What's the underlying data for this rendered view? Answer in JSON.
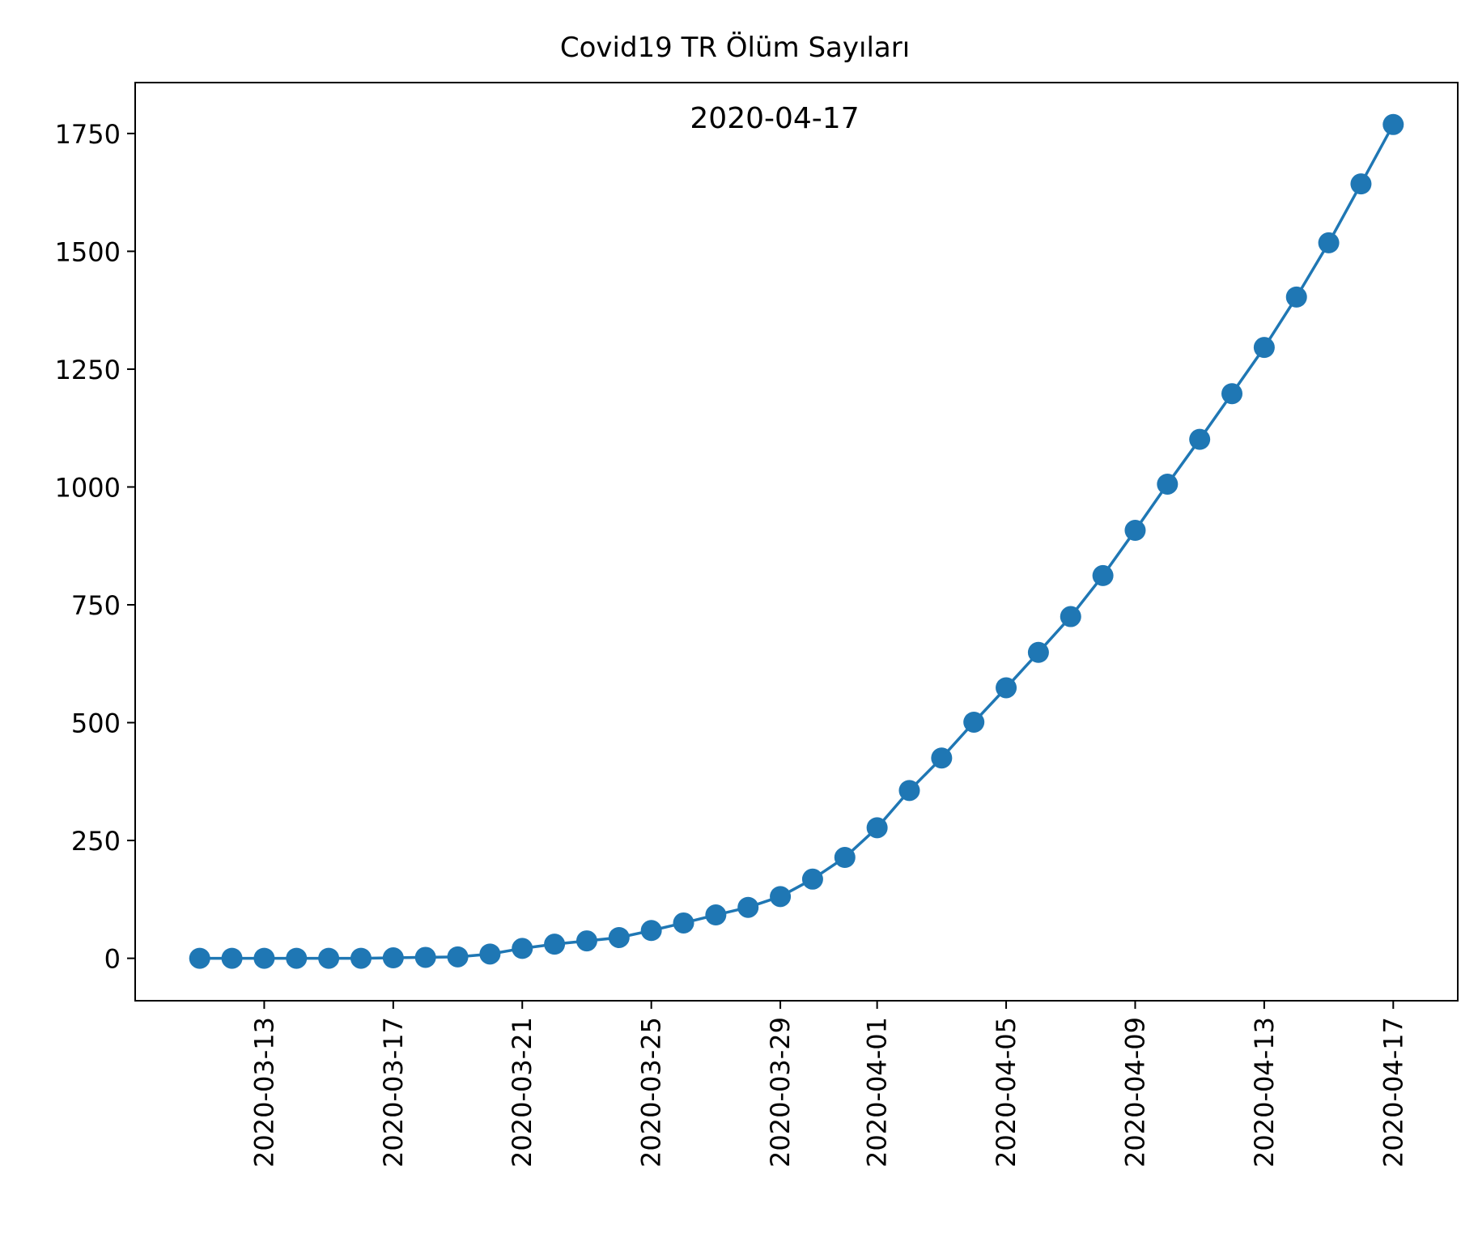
{
  "chart_data": {
    "type": "line",
    "title": "Covid19 TR Ölüm Sayıları",
    "annotation": "2020-04-17",
    "xlabel": "",
    "ylabel": "",
    "x": [
      "2020-03-11",
      "2020-03-12",
      "2020-03-13",
      "2020-03-14",
      "2020-03-15",
      "2020-03-16",
      "2020-03-17",
      "2020-03-18",
      "2020-03-19",
      "2020-03-20",
      "2020-03-21",
      "2020-03-22",
      "2020-03-23",
      "2020-03-24",
      "2020-03-25",
      "2020-03-26",
      "2020-03-27",
      "2020-03-28",
      "2020-03-29",
      "2020-03-30",
      "2020-03-31",
      "2020-04-01",
      "2020-04-02",
      "2020-04-03",
      "2020-04-04",
      "2020-04-05",
      "2020-04-06",
      "2020-04-07",
      "2020-04-08",
      "2020-04-09",
      "2020-04-10",
      "2020-04-11",
      "2020-04-12",
      "2020-04-13",
      "2020-04-14",
      "2020-04-15",
      "2020-04-16",
      "2020-04-17"
    ],
    "series": [
      {
        "color": "#1f77b4",
        "marker": "circle",
        "values": [
          0,
          0,
          0,
          0,
          0,
          0,
          1,
          2,
          3,
          9,
          21,
          30,
          37,
          44,
          59,
          75,
          92,
          108,
          131,
          168,
          214,
          277,
          356,
          425,
          501,
          574,
          649,
          725,
          812,
          908,
          1006,
          1101,
          1198,
          1296,
          1403,
          1518,
          1643,
          1769
        ]
      }
    ],
    "xticks": [
      "2020-03-13",
      "2020-03-17",
      "2020-03-21",
      "2020-03-25",
      "2020-03-29",
      "2020-04-01",
      "2020-04-05",
      "2020-04-09",
      "2020-04-13",
      "2020-04-17"
    ],
    "yticks": [
      0,
      250,
      500,
      750,
      1000,
      1250,
      1500,
      1750
    ],
    "xlim": [
      "2020-03-09",
      "2020-04-19"
    ],
    "ylim": [
      -90,
      1858
    ],
    "grid": false,
    "legend": "none"
  }
}
